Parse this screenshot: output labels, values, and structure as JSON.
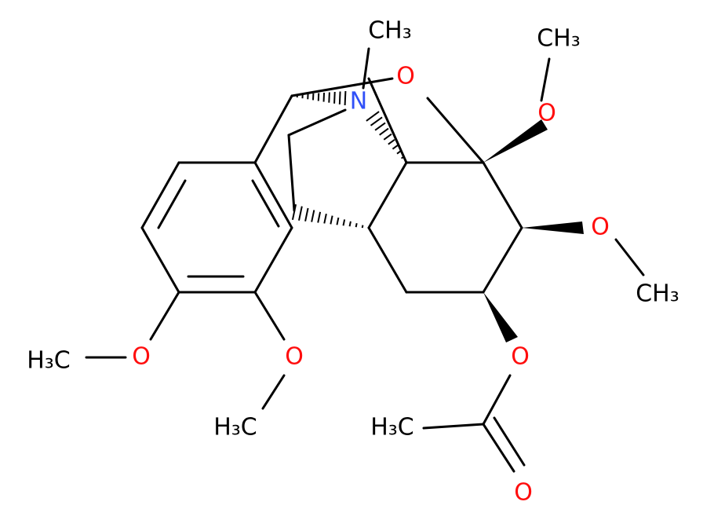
{
  "atoms": [
    "CH₃",
    "N",
    "O",
    "CH₃",
    "O",
    "O",
    "CH₃",
    "O",
    "H₃C",
    "O",
    "O",
    "H₃C",
    "O",
    "H₃C"
  ]
}
